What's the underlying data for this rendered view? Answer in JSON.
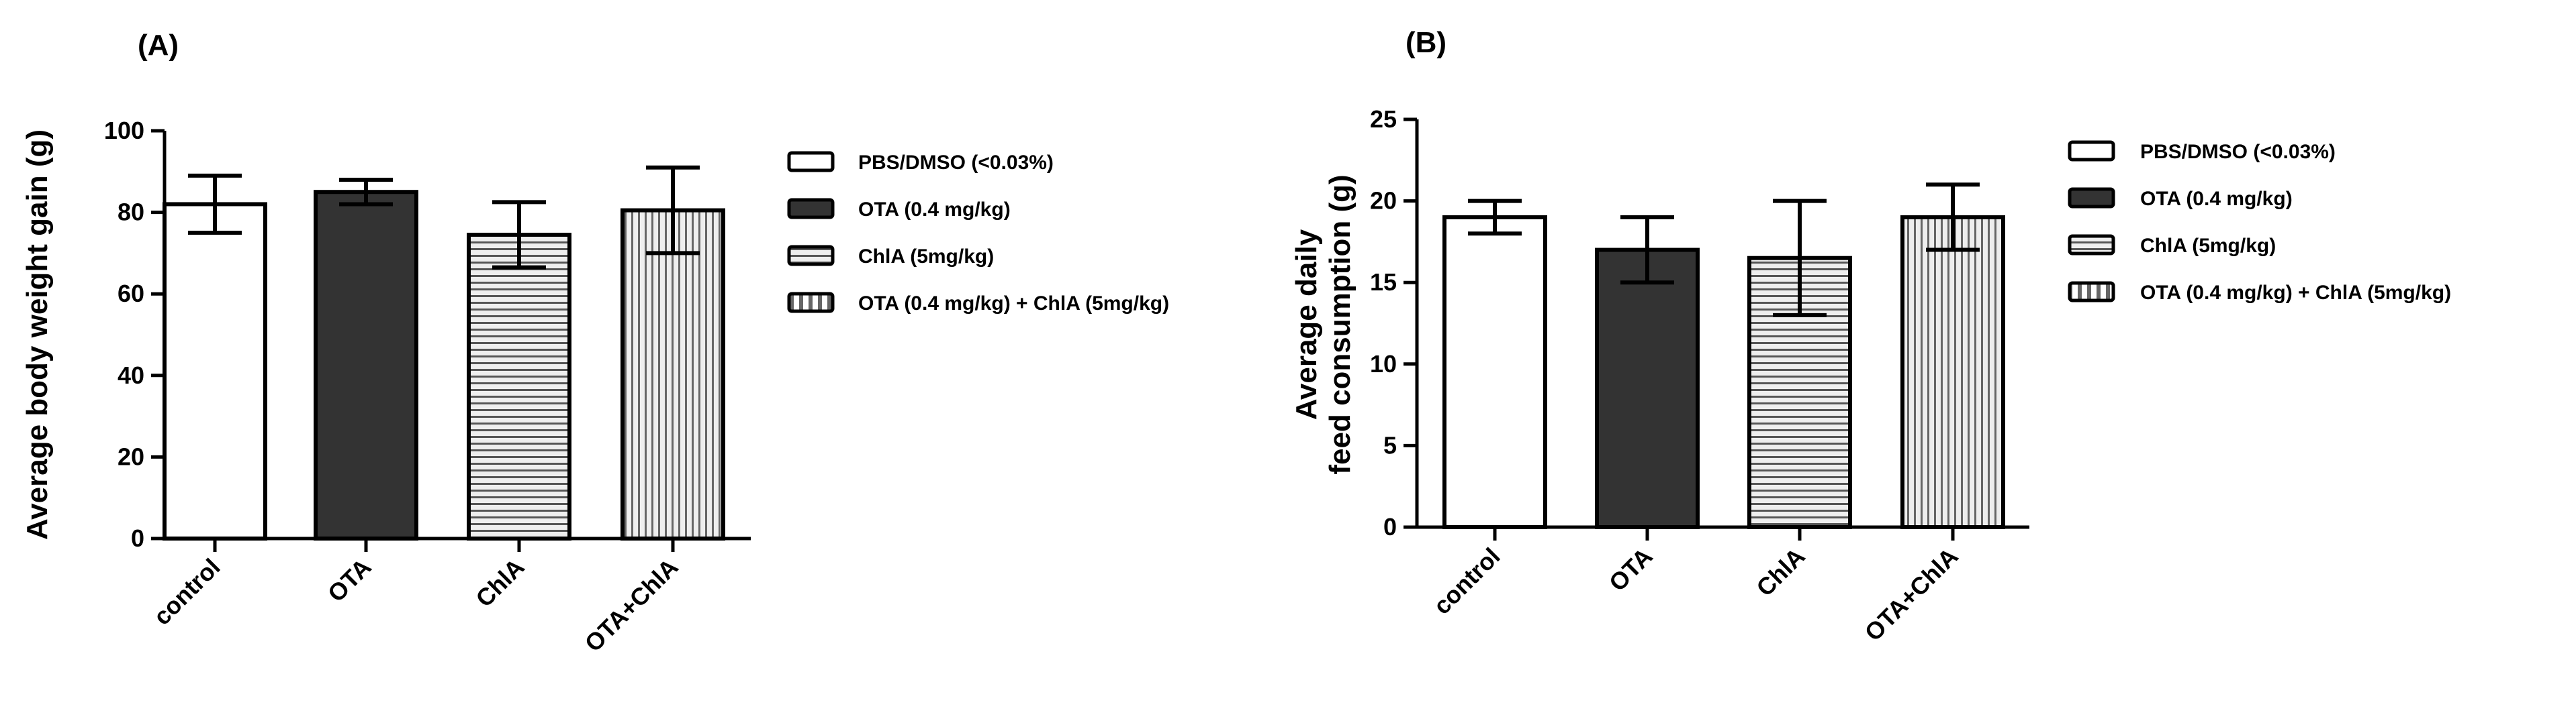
{
  "chart_data": [
    {
      "type": "bar",
      "panel": "(A)",
      "title": "",
      "xlabel": "",
      "ylabel": "Average body weight gain (g)",
      "ylim": [
        0,
        100
      ],
      "yticks": [
        0,
        20,
        40,
        60,
        80,
        100
      ],
      "categories": [
        "control",
        "OTA",
        "ChlA",
        "OTA+ChlA"
      ],
      "values": [
        82,
        85,
        74.5,
        80.5
      ],
      "error_bars": [
        7,
        3,
        8,
        10.5
      ],
      "legend": [
        {
          "label": "PBS/DMSO (<0.03%)",
          "fill": "white"
        },
        {
          "label": "OTA (0.4 mg/kg)",
          "fill": "dark"
        },
        {
          "label": "ChlA (5mg/kg)",
          "fill": "horizontal-stripes"
        },
        {
          "label": "OTA (0.4 mg/kg) + ChlA (5mg/kg)",
          "fill": "vertical-stripes"
        }
      ],
      "legend_position": "right",
      "grid": false
    },
    {
      "type": "bar",
      "panel": "(B)",
      "title": "",
      "xlabel": "",
      "ylabel_lines": [
        "Average daily",
        "feed consumption (g)"
      ],
      "ylim": [
        0,
        25
      ],
      "yticks": [
        0,
        5,
        10,
        15,
        20,
        25
      ],
      "categories": [
        "control",
        "OTA",
        "ChlA",
        "OTA+ChlA"
      ],
      "values": [
        19,
        17,
        16.5,
        19
      ],
      "error_bars": [
        1,
        2,
        3.5,
        2
      ],
      "legend": [
        {
          "label": "PBS/DMSO (<0.03%)",
          "fill": "white"
        },
        {
          "label": "OTA (0.4 mg/kg)",
          "fill": "dark"
        },
        {
          "label": "ChlA (5mg/kg)",
          "fill": "horizontal-stripes"
        },
        {
          "label": "OTA (0.4 mg/kg) + ChlA (5mg/kg)",
          "fill": "vertical-stripes"
        }
      ],
      "legend_position": "right",
      "grid": false
    }
  ],
  "colors": {
    "axis": "#000000",
    "dark_fill": "#333333",
    "stripe_bg": "#eeeeee",
    "stripe_line": "#555555",
    "white_fill": "#ffffff"
  }
}
